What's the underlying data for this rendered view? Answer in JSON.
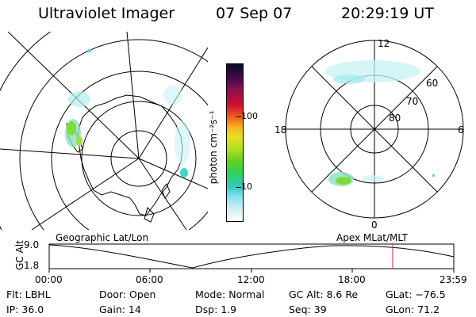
{
  "header": {
    "instrument": "Ultraviolet Imager",
    "date": "07 Sep 07",
    "time": "20:29:19 UT"
  },
  "colorbar": {
    "unit_label": "photon cm⁻²s⁻¹",
    "ticks": [
      "100",
      "10"
    ]
  },
  "left_map": {
    "caption": "Geographic Lat/Lon"
  },
  "right_map": {
    "caption": "Apex  MLat/MLT",
    "mlt_labels": {
      "top": "12",
      "right": "6",
      "bottom": "0",
      "left": "18"
    },
    "lat_labels": [
      "60",
      "70",
      "80"
    ]
  },
  "altitude_plot": {
    "ylabel": "GC Alt",
    "yticks": [
      "9.0",
      "1.8"
    ],
    "xticks": [
      "00:00",
      "06:00",
      "12:00",
      "18:00",
      "23:59"
    ],
    "marker_color": "#e02020"
  },
  "footer": {
    "flt": "Flt: LBHL",
    "ip": "IP: 36.0",
    "door": "Door: Open",
    "gain": "Gain: 14",
    "mode": "Mode: Normal",
    "dsp": "Dsp:     1.9",
    "gc_alt": "GC Alt: 8.6 Re",
    "seq": "Seq: 39",
    "glat": "GLat: −76.5",
    "glon": "GLon:  71.2"
  }
}
